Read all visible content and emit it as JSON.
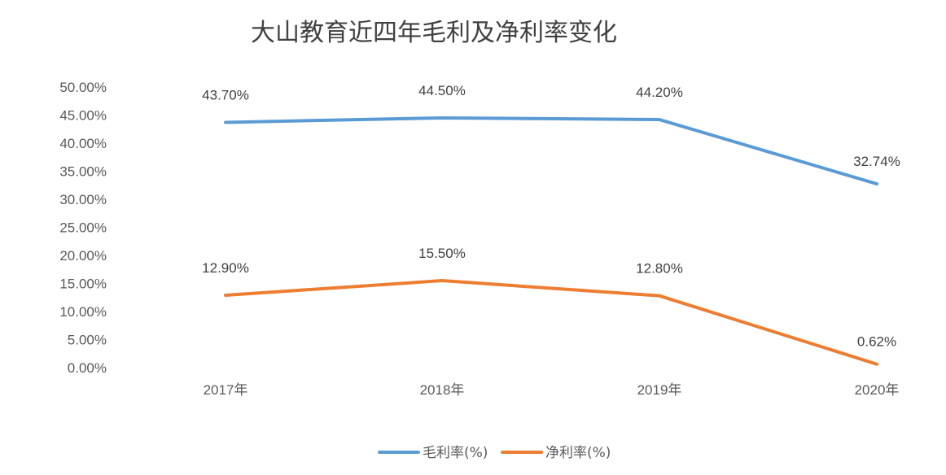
{
  "chart_data": {
    "type": "line",
    "title": "大山教育近四年毛利及净利率变化",
    "categories": [
      "2017年",
      "2018年",
      "2019年",
      "2020年"
    ],
    "series": [
      {
        "name": "毛利率(%)",
        "color": "#5B9BD5",
        "values": [
          43.7,
          44.5,
          44.2,
          32.74
        ],
        "labels": [
          "43.70%",
          "44.50%",
          "44.20%",
          "32.74%"
        ]
      },
      {
        "name": "净利率(%)",
        "color": "#ED7D31",
        "values": [
          12.9,
          15.5,
          12.8,
          0.62
        ],
        "labels": [
          "12.90%",
          "15.50%",
          "12.80%",
          "0.62%"
        ]
      }
    ],
    "yticks": [
      "0.00%",
      "5.00%",
      "10.00%",
      "15.00%",
      "20.00%",
      "25.00%",
      "30.00%",
      "35.00%",
      "40.00%",
      "45.00%",
      "50.00%"
    ],
    "ylim": [
      0,
      50
    ],
    "grid": false,
    "legend": "bottom"
  }
}
